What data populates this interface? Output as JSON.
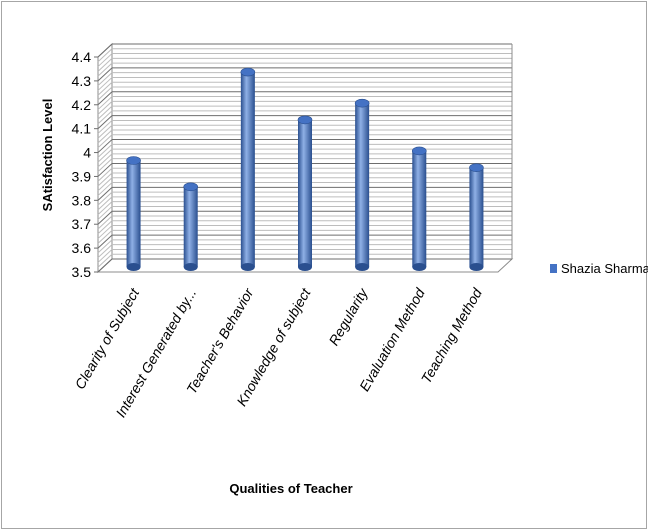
{
  "chart_data": {
    "type": "bar",
    "style": "3d-cylinder",
    "categories": [
      "Clearity of Subject",
      "Interest Generated by...",
      "Teacher's Behavior",
      "Knowledge of subject",
      "Regularity",
      "Evaluation Method",
      "Teaching Method"
    ],
    "series": [
      {
        "name": "Shazia Sharma",
        "values": [
          3.95,
          3.84,
          4.32,
          4.12,
          4.19,
          3.99,
          3.92
        ]
      }
    ],
    "ylabel": "SAtisfaction Level",
    "xlabel": "Qualities of Teacher",
    "ylim": [
      3.5,
      4.4
    ],
    "yticks": [
      "3.5",
      "3.6",
      "3.7",
      "3.8",
      "3.9",
      "4",
      "4.1",
      "4.2",
      "4.3",
      "4.4"
    ],
    "grid": true,
    "legend": "right",
    "colors": {
      "bar": "#4472c4",
      "bar_dark": "#2a4f8f",
      "bar_light": "#8fb0e6",
      "grid": "#8c8c8c"
    }
  }
}
